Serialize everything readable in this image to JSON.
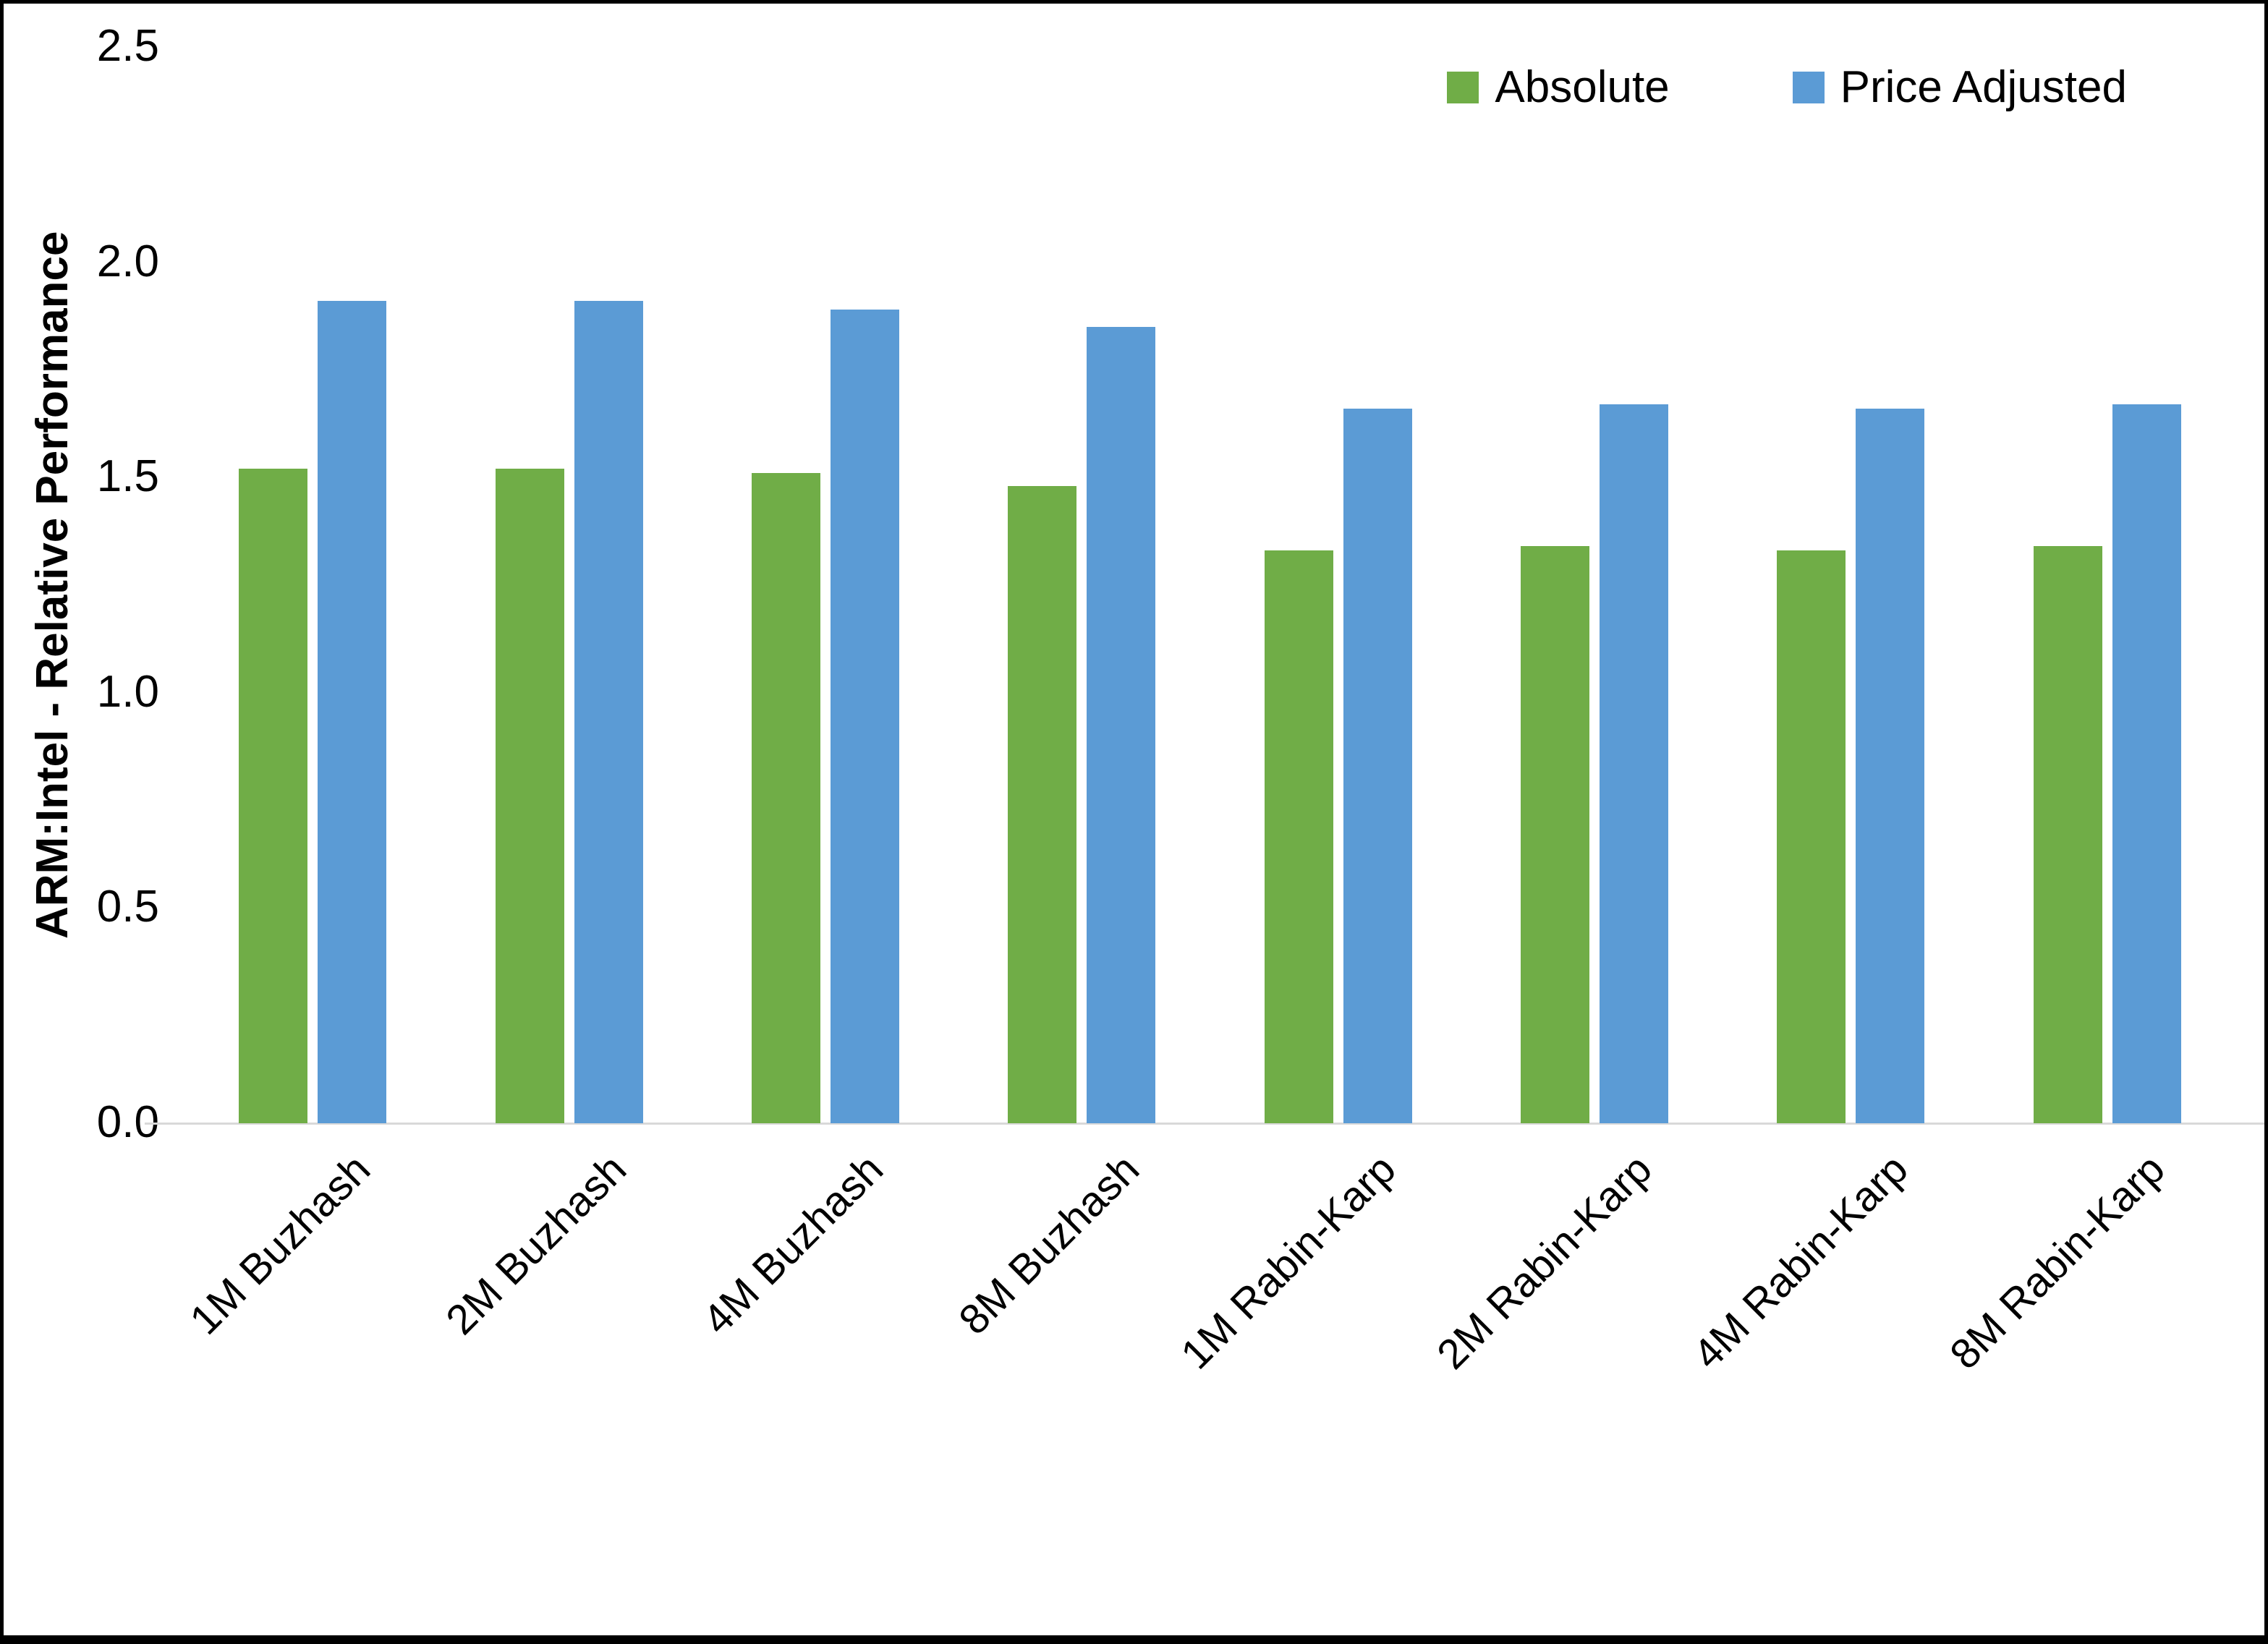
{
  "chart_data": {
    "type": "bar",
    "title": "",
    "xlabel": "",
    "ylabel": "ARM:Intel - Relative Performance",
    "categories": [
      "1M Buzhash",
      "2M Buzhash",
      "4M Buzhash",
      "8M Buzhash",
      "1M Rabin-Karp",
      "2M Rabin-Karp",
      "4M Rabin-Karp",
      "8M Rabin-Karp"
    ],
    "series": [
      {
        "name": "Absolute",
        "color": "#70AD47",
        "values": [
          1.52,
          1.52,
          1.51,
          1.48,
          1.33,
          1.34,
          1.33,
          1.34
        ]
      },
      {
        "name": "Price Adjusted",
        "color": "#5B9BD5",
        "values": [
          1.91,
          1.91,
          1.89,
          1.85,
          1.66,
          1.67,
          1.66,
          1.67
        ]
      }
    ],
    "ylim": [
      0.0,
      2.5
    ],
    "yticks": [
      "2.5",
      "2.0",
      "1.5",
      "1.0",
      "0.5",
      "0.0"
    ],
    "ytick_values": [
      2.5,
      2.0,
      1.5,
      1.0,
      0.5,
      0.0
    ],
    "grid": false,
    "legend_position": "top-right",
    "axis_line_color": "#d9d9d9"
  }
}
